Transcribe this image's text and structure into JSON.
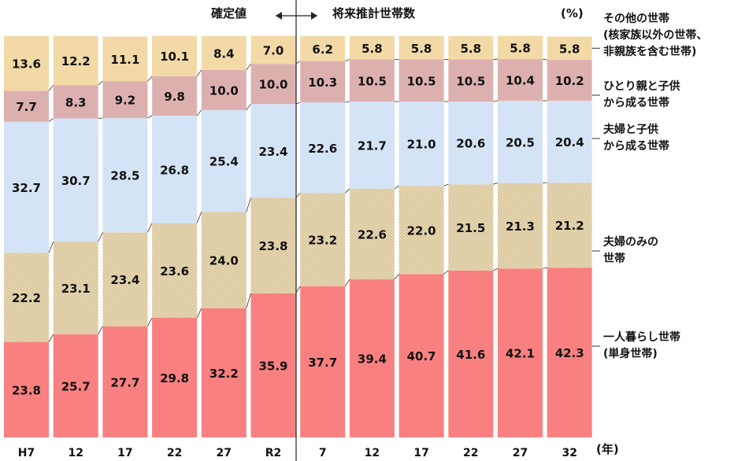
{
  "header": {
    "confirmed": "確定値",
    "projection": "将来推計世帯数",
    "unit": "(%)"
  },
  "x_unit": "(年)",
  "colors": {
    "single": "#f98080",
    "couple_only": "#e6d8b4",
    "couple_children": "#d4e3f5",
    "single_parent": "#ddb0b0",
    "other": "#f2d9a6"
  },
  "legend": {
    "other": [
      "その他の世帯",
      "(核家族以外の世帯、",
      "非親族を含む世帯)"
    ],
    "single_parent": [
      "ひとり親と子供",
      "から成る世帯"
    ],
    "couple_children": [
      "夫婦と子供",
      "から成る世帯"
    ],
    "couple_only": [
      "夫婦のみの",
      "世帯"
    ],
    "single": [
      "一人暮らし世帯",
      "(単身世帯)"
    ]
  },
  "chart_data": {
    "type": "bar",
    "stacked": true,
    "categories": [
      "H7",
      "12",
      "17",
      "22",
      "27",
      "R2",
      "7",
      "12",
      "17",
      "22",
      "27",
      "32"
    ],
    "ylim": [
      0,
      100
    ],
    "series": [
      {
        "name": "一人暮らし世帯(単身世帯)",
        "key": "single",
        "values": [
          23.8,
          25.7,
          27.7,
          29.8,
          32.2,
          35.9,
          37.7,
          39.4,
          40.7,
          41.6,
          42.1,
          42.3
        ]
      },
      {
        "name": "夫婦のみの世帯",
        "key": "couple_only",
        "values": [
          22.2,
          23.1,
          23.4,
          23.6,
          24.0,
          23.8,
          23.2,
          22.6,
          22.0,
          21.5,
          21.3,
          21.2
        ]
      },
      {
        "name": "夫婦と子供から成る世帯",
        "key": "couple_children",
        "values": [
          32.7,
          30.7,
          28.5,
          26.8,
          25.4,
          23.4,
          22.6,
          21.7,
          21.0,
          20.6,
          20.5,
          20.4
        ]
      },
      {
        "name": "ひとり親と子供から成る世帯",
        "key": "single_parent",
        "values": [
          7.7,
          8.3,
          9.2,
          9.8,
          10.0,
          10.0,
          10.3,
          10.5,
          10.5,
          10.5,
          10.4,
          10.2
        ]
      },
      {
        "name": "その他の世帯(核家族以外の世帯、非親族を含む世帯)",
        "key": "other",
        "values": [
          13.6,
          12.2,
          11.1,
          10.1,
          8.4,
          7.0,
          6.2,
          5.8,
          5.8,
          5.8,
          5.8,
          5.8
        ]
      }
    ]
  }
}
